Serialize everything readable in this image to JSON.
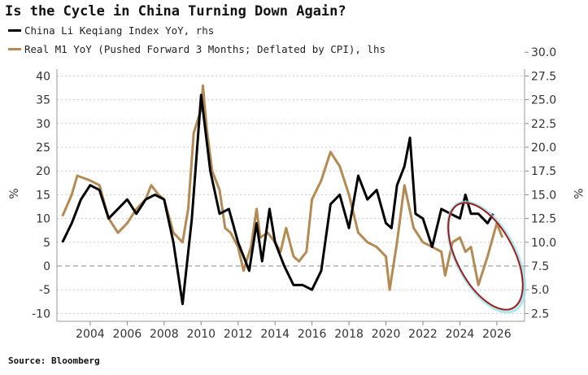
{
  "chart_data": {
    "type": "line",
    "title": "Is the Cycle in China Turning Down Again?",
    "source": "Source: Bloomberg",
    "left_axis": {
      "label": "%",
      "range": [
        -10,
        40
      ],
      "ticks": [
        "-10",
        "-5",
        "0",
        "5",
        "10",
        "15",
        "20",
        "25",
        "30",
        "35",
        "40"
      ]
    },
    "right_axis": {
      "label": "%",
      "range": [
        2.5,
        30.0
      ],
      "ticks": [
        "2.5",
        "5.0",
        "7.5",
        "10.0",
        "12.5",
        "15.0",
        "17.5",
        "20.0",
        "22.5",
        "25.0",
        "27.5",
        "30.0"
      ]
    },
    "x_axis": {
      "range": [
        2002.2,
        2027.5
      ],
      "ticks": [
        "2004",
        "2006",
        "2008",
        "2010",
        "2012",
        "2014",
        "2016",
        "2018",
        "2020",
        "2022",
        "2024",
        "2026"
      ]
    },
    "grid": true,
    "legend_position": "top-left",
    "series": [
      {
        "name": "China Li Keqiang Index YoY, rhs",
        "axis": "right",
        "color": "#000000",
        "x": [
          2002.5,
          2003,
          2003.5,
          2004,
          2004.5,
          2005,
          2005.5,
          2006,
          2006.5,
          2007,
          2007.5,
          2008,
          2008.5,
          2009,
          2009.5,
          2010,
          2010.5,
          2011,
          2011.5,
          2012,
          2012.6,
          2013,
          2013.3,
          2013.7,
          2014,
          2014.5,
          2015,
          2015.5,
          2016,
          2016.5,
          2017,
          2017.5,
          2018,
          2018.5,
          2019,
          2019.5,
          2020,
          2020.3,
          2020.6,
          2021,
          2021.3,
          2021.6,
          2022,
          2022.5,
          2023,
          2023.5,
          2024,
          2024.3,
          2024.6,
          2025,
          2025.5,
          2025.8
        ],
        "y": [
          10,
          12,
          14.5,
          16,
          15.5,
          12.5,
          13.5,
          14.5,
          13,
          14.5,
          15,
          14.5,
          10,
          3.5,
          12.5,
          25.5,
          17.5,
          13,
          13.5,
          10,
          7,
          12,
          8,
          13.5,
          10,
          7.5,
          5.5,
          5.5,
          5,
          7,
          14,
          15,
          11.5,
          17,
          14.5,
          15.5,
          12,
          11.5,
          16,
          18,
          21,
          13,
          12.5,
          9.5,
          13.5,
          13,
          12.5,
          15,
          13,
          13,
          12,
          13
        ]
      },
      {
        "name": "Real M1 YoY (Pushed Forward 3 Months; Deflated by CPI), lhs",
        "axis": "left",
        "color": "#b38a53",
        "x": [
          2002.5,
          2003,
          2003.3,
          2004,
          2004.5,
          2005,
          2005.5,
          2006,
          2006.5,
          2007,
          2007.3,
          2007.7,
          2008,
          2008.5,
          2009,
          2009.3,
          2009.6,
          2010,
          2010.1,
          2010.3,
          2010.6,
          2011,
          2011.3,
          2011.6,
          2012,
          2012.3,
          2012.7,
          2013,
          2013.2,
          2013.6,
          2014,
          2014.3,
          2014.6,
          2015,
          2015.3,
          2015.7,
          2016,
          2016.5,
          2017,
          2017.5,
          2018,
          2018.5,
          2019,
          2019.5,
          2020,
          2020.2,
          2020.6,
          2021,
          2021.5,
          2022,
          2022.5,
          2023,
          2023.2,
          2023.6,
          2024,
          2024.3,
          2024.6,
          2025,
          2025.5,
          2026,
          2026.3
        ],
        "y": [
          10.5,
          15,
          19,
          18,
          17,
          10,
          7,
          9,
          12,
          14,
          17,
          15,
          14,
          7,
          5,
          12,
          28,
          33,
          38,
          29,
          20,
          16,
          8,
          7,
          4,
          -1,
          4,
          12,
          6,
          7,
          5,
          3,
          8,
          2,
          1,
          3,
          14,
          18,
          24,
          21,
          15,
          7,
          5,
          4,
          2,
          -5,
          5,
          17,
          8,
          5,
          4,
          3,
          -2,
          5,
          6,
          3,
          4,
          -4,
          2,
          9,
          6
        ]
      }
    ],
    "annotation": {
      "shape": "ellipse",
      "color": "#a01c1c"
    }
  }
}
